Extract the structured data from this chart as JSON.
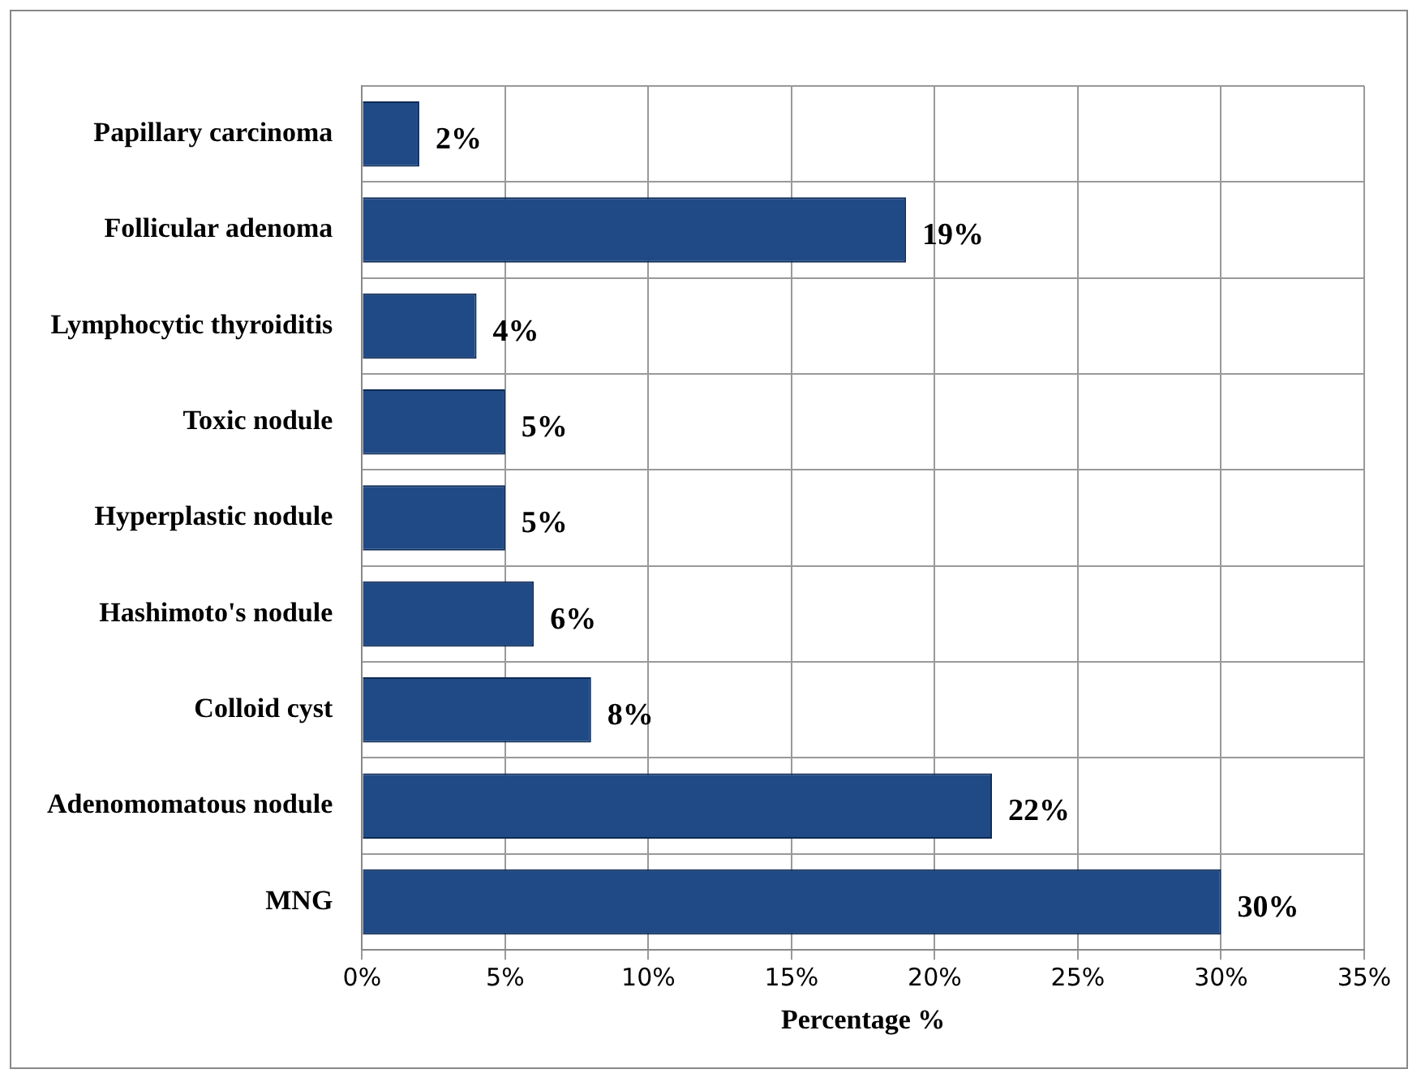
{
  "chart_data": {
    "type": "bar",
    "orientation": "horizontal",
    "xlabel": "Percentage %",
    "categories": [
      "Papillary carcinoma",
      "Follicular adenoma",
      "Lymphocytic thyroiditis",
      "Toxic nodule",
      "Hyperplastic nodule",
      "Hashimoto's nodule",
      "Colloid cyst",
      "Adenomomatous nodule",
      "MNG"
    ],
    "values": [
      2,
      19,
      4,
      5,
      5,
      6,
      8,
      22,
      30
    ],
    "value_labels": [
      "2%",
      "19%",
      "4%",
      "5%",
      "5%",
      "6%",
      "8%",
      "22%",
      "30%"
    ],
    "color": "#1f4a86",
    "xlim": [
      0,
      35
    ],
    "xticks": [
      {
        "value": 0,
        "label": "0%"
      },
      {
        "value": 5,
        "label": "5%"
      },
      {
        "value": 10,
        "label": "10%"
      },
      {
        "value": 15,
        "label": "15%"
      },
      {
        "value": 20,
        "label": "20%"
      },
      {
        "value": 25,
        "label": "25%"
      },
      {
        "value": 30,
        "label": "30%"
      },
      {
        "value": 35,
        "label": "35%"
      }
    ],
    "grid": true
  }
}
